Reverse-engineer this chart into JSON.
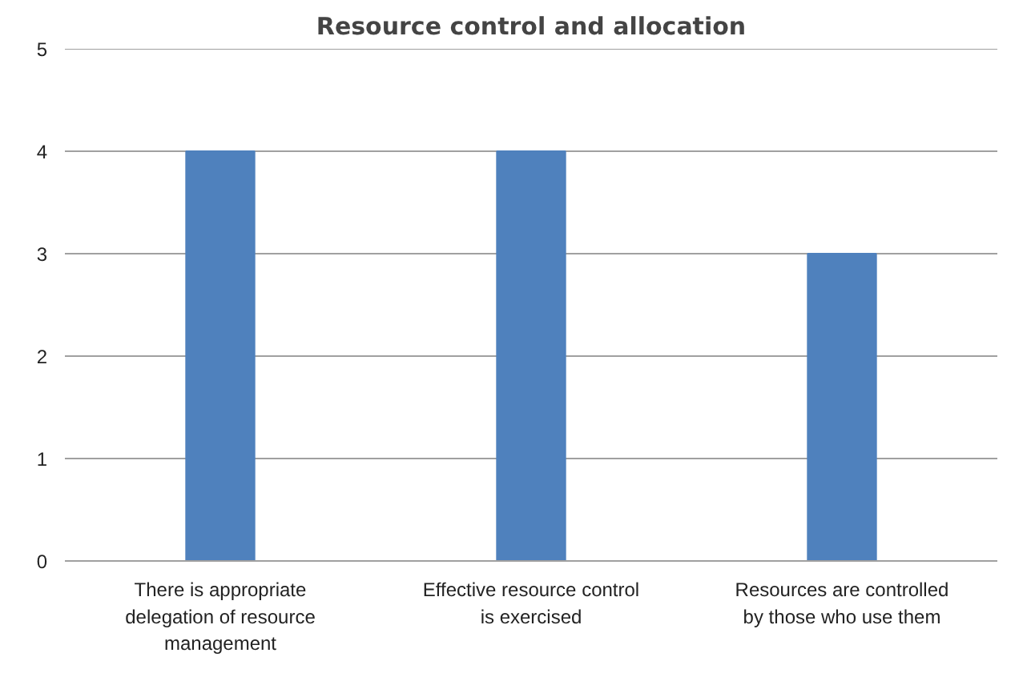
{
  "chart_data": {
    "type": "bar",
    "title": "Resource control and allocation",
    "categories": [
      "There is appropriate delegation of resource management",
      "Effective resource control is exercised",
      "Resources are controlled by those who use them"
    ],
    "values": [
      4,
      4,
      3
    ],
    "color": "#4f81bd",
    "ylim": [
      0,
      5
    ],
    "yticks": [
      0,
      1,
      2,
      3,
      4,
      5
    ],
    "grid": "y"
  }
}
